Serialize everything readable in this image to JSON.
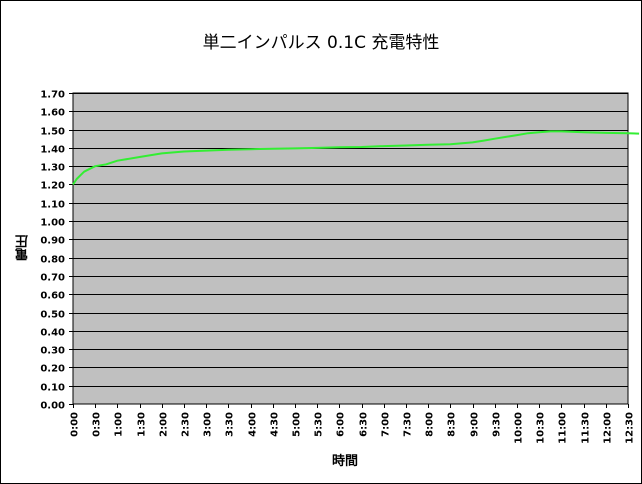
{
  "chart_data": {
    "type": "line",
    "title": "単二インパルス 0.1C 充電特性",
    "xlabel": "時間",
    "ylabel": "電圧",
    "ylim": [
      0.0,
      1.7
    ],
    "y_ticks": [
      "0.00",
      "0.10",
      "0.20",
      "0.30",
      "0.40",
      "0.50",
      "0.60",
      "0.70",
      "0.80",
      "0.90",
      "1.00",
      "1.10",
      "1.20",
      "1.30",
      "1.40",
      "1.50",
      "1.60",
      "1.70"
    ],
    "x_ticks": [
      "0:00",
      "0:30",
      "1:00",
      "1:30",
      "2:00",
      "2:30",
      "3:00",
      "3:30",
      "4:00",
      "4:30",
      "5:00",
      "5:30",
      "6:00",
      "6:30",
      "7:00",
      "7:30",
      "8:00",
      "8:30",
      "9:00",
      "9:30",
      "10:00",
      "10:30",
      "11:00",
      "11:30",
      "12:00",
      "12:30"
    ],
    "grid": true,
    "legend": "none",
    "series": [
      {
        "color": "#33ee33",
        "x": [
          "0:00",
          "0:05",
          "0:10",
          "0:15",
          "0:20",
          "0:30",
          "0:45",
          "1:00",
          "1:30",
          "2:00",
          "2:30",
          "3:00",
          "3:30",
          "4:00",
          "4:30",
          "5:00",
          "5:30",
          "6:00",
          "6:30",
          "7:00",
          "7:30",
          "8:00",
          "8:30",
          "9:00",
          "9:15",
          "9:30",
          "9:45",
          "10:00",
          "10:15",
          "10:30",
          "10:45",
          "11:00",
          "11:30",
          "12:00",
          "12:30",
          "12:45"
        ],
        "values": [
          1.2,
          1.23,
          1.25,
          1.27,
          1.28,
          1.3,
          1.31,
          1.33,
          1.35,
          1.37,
          1.38,
          1.385,
          1.39,
          1.393,
          1.395,
          1.397,
          1.4,
          1.403,
          1.405,
          1.41,
          1.413,
          1.417,
          1.42,
          1.43,
          1.44,
          1.45,
          1.46,
          1.47,
          1.48,
          1.485,
          1.49,
          1.49,
          1.485,
          1.482,
          1.48,
          1.478
        ]
      }
    ]
  },
  "colors": {
    "plot_background": "#c0c0c0",
    "gridline": "#000000",
    "series_line": "#33ee33"
  }
}
